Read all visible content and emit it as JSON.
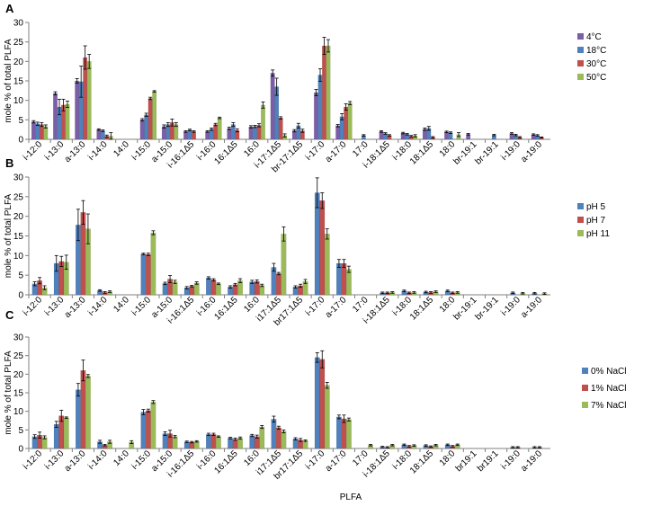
{
  "figure": {
    "xlabel": "PLFA"
  },
  "chart_data": [
    {
      "panel": "A",
      "type": "bar",
      "ylabel": "mole % of total PLFA",
      "ylim": [
        0,
        30
      ],
      "yticks": [
        0,
        5,
        10,
        15,
        20,
        25,
        30
      ],
      "legend_position": "right",
      "categories": [
        "i-12:0",
        "i-13:0",
        "a-13:0",
        "i-14:0",
        "14:0",
        "i-15:0",
        "a-15:0",
        "i-16:1Δ5",
        "i-16:0",
        "16:1Δ5",
        "16:0",
        "i-17:1Δ5",
        "br-17:1Δ5",
        "i-17:0",
        "a-17:0",
        "17:0",
        "i-18:1Δ5",
        "i-18:0",
        "18:1Δ5",
        "18:0",
        "br-19:1",
        "br-19:1",
        "i-19:0",
        "a-19:0"
      ],
      "series": [
        {
          "name": "4°C",
          "color": "#7b5ea7",
          "values": [
            4.5,
            11.8,
            15.0,
            2.5,
            0,
            5.0,
            3.3,
            2.0,
            2.0,
            2.8,
            3.2,
            17.0,
            2.2,
            12.0,
            3.5,
            0,
            2.0,
            1.6,
            2.6,
            1.9,
            1.3,
            0,
            1.5,
            1.2
          ],
          "errors": [
            0.3,
            0.4,
            0.6,
            0.2,
            0,
            0.3,
            0.4,
            0.2,
            0.2,
            0.3,
            0.3,
            0.8,
            0.3,
            0.8,
            0.3,
            0,
            0.2,
            0.2,
            0.3,
            0.2,
            0.2,
            0,
            0.2,
            0.2
          ]
        },
        {
          "name": "18°C",
          "color": "#4f81bd",
          "values": [
            4.0,
            8.3,
            14.8,
            2.2,
            0,
            6.3,
            3.8,
            2.4,
            2.6,
            3.8,
            3.3,
            13.5,
            3.5,
            16.5,
            5.8,
            1.0,
            1.5,
            1.3,
            2.8,
            1.7,
            0,
            1.1,
            1.1,
            1.0
          ],
          "errors": [
            0.4,
            2.0,
            4.0,
            0.2,
            0,
            0.4,
            0.5,
            0.2,
            0.3,
            0.5,
            0.3,
            2.2,
            0.6,
            1.6,
            0.8,
            0.2,
            0.2,
            0.2,
            0.5,
            0.2,
            0,
            0.2,
            0.2,
            0.2
          ]
        },
        {
          "name": "30°C",
          "color": "#c0504d",
          "values": [
            3.8,
            8.8,
            21.0,
            0.8,
            0,
            10.5,
            4.3,
            2.0,
            3.8,
            2.3,
            3.6,
            5.5,
            2.2,
            24.0,
            8.3,
            0,
            1.0,
            0.8,
            0.5,
            0,
            0,
            0,
            0.5,
            0.5
          ],
          "errors": [
            0.5,
            1.5,
            3.0,
            0.3,
            0,
            0.3,
            0.9,
            0.2,
            0.3,
            0.4,
            0.4,
            0.3,
            0.4,
            2.2,
            0.8,
            0,
            0.2,
            0.2,
            0.2,
            0,
            0,
            0,
            0.2,
            0.1
          ]
        },
        {
          "name": "50°C",
          "color": "#9bbb59",
          "values": [
            3.3,
            9.0,
            20.0,
            0.8,
            0,
            12.3,
            3.8,
            0,
            5.5,
            0,
            8.8,
            1.0,
            0,
            24.0,
            9.3,
            0,
            0,
            0.9,
            0,
            1.2,
            0,
            0,
            0,
            0
          ],
          "errors": [
            0.4,
            0.8,
            1.8,
            0.9,
            0,
            0.2,
            0.5,
            0,
            0.2,
            0,
            0.8,
            0.4,
            0,
            1.6,
            0.4,
            0,
            0,
            0.3,
            0,
            0.5,
            0,
            0,
            0,
            0
          ]
        }
      ]
    },
    {
      "panel": "B",
      "type": "bar",
      "ylabel": "mole % of total PLFA",
      "ylim": [
        0,
        30
      ],
      "yticks": [
        0,
        5,
        10,
        15,
        20,
        25,
        30
      ],
      "legend_position": "right",
      "categories": [
        "i-12:0",
        "i-13:0",
        "a-13:0",
        "i-14:0",
        "14:0",
        "i-15:0",
        "a-15:0",
        "i-16:1Δ5",
        "i-16:0",
        "16:1Δ5",
        "16:0",
        "i17:1Δ5",
        "br17:1Δ5",
        "i-17:0",
        "a-17:0",
        "17:0",
        "i-18:1Δ5",
        "i-18:0",
        "18:1Δ5",
        "18:0",
        "br-19:1",
        "br-19:1",
        "i-19:0",
        "a-19:0"
      ],
      "series": [
        {
          "name": "pH 5",
          "color": "#4f81bd",
          "values": [
            2.8,
            8.0,
            17.8,
            1.1,
            0,
            10.4,
            2.9,
            1.8,
            4.3,
            2.0,
            3.3,
            7.0,
            2.0,
            26.0,
            8.0,
            0,
            0.5,
            1.0,
            0.7,
            1.0,
            0,
            0,
            0.5,
            0.4
          ],
          "errors": [
            0.5,
            2.0,
            4.0,
            0.2,
            0,
            0.2,
            0.3,
            0.3,
            0.3,
            0.3,
            0.4,
            1.0,
            0.3,
            3.8,
            1.0,
            0,
            0.2,
            0.2,
            0.2,
            0.2,
            0,
            0,
            0.2,
            0.2
          ]
        },
        {
          "name": "pH 7",
          "color": "#c0504d",
          "values": [
            3.6,
            8.5,
            21.0,
            0.6,
            0,
            10.3,
            4.0,
            2.2,
            3.8,
            2.6,
            3.4,
            5.4,
            2.3,
            24.0,
            8.0,
            0,
            0.5,
            0.5,
            0.6,
            0.5,
            0,
            0,
            0,
            0
          ],
          "errors": [
            0.8,
            1.3,
            3.0,
            0.2,
            0,
            0.3,
            0.9,
            0.2,
            0.3,
            0.3,
            0.4,
            0.3,
            0.4,
            2.0,
            1.0,
            0,
            0.2,
            0.2,
            0.2,
            0.2,
            0,
            0,
            0,
            0
          ]
        },
        {
          "name": "pH 11",
          "color": "#9bbb59",
          "values": [
            1.8,
            8.3,
            16.8,
            0.8,
            0,
            15.8,
            3.3,
            3.0,
            2.8,
            3.6,
            2.4,
            15.5,
            3.4,
            15.5,
            6.5,
            0,
            0.6,
            0.6,
            0.8,
            0.6,
            0,
            0,
            0.4,
            0.3
          ],
          "errors": [
            0.5,
            1.8,
            3.8,
            0.2,
            0,
            0.5,
            0.4,
            0.3,
            0.2,
            0.5,
            0.3,
            1.8,
            0.5,
            1.3,
            0.8,
            0,
            0.2,
            0.2,
            0.2,
            0.2,
            0,
            0,
            0.2,
            0.2
          ]
        }
      ]
    },
    {
      "panel": "C",
      "type": "bar",
      "ylabel": "mole % of total PLFA",
      "ylim": [
        0,
        30
      ],
      "yticks": [
        0,
        5,
        10,
        15,
        20,
        25,
        30
      ],
      "legend_position": "right",
      "categories": [
        "i-12:0",
        "i-13:0",
        "a-13:0",
        "i-14:0",
        "14:0",
        "i-15:0",
        "a-15:0",
        "i-16:1Δ5",
        "i-16:0",
        "16:1Δ5",
        "16:0",
        "i17:1Δ5",
        "br17:1Δ5",
        "i-17:0",
        "a-17:0",
        "17:0",
        "i-18:1Δ5",
        "i-18:0",
        "18:1Δ5",
        "18:0",
        "br19:1",
        "br19:1",
        "i-19:0",
        "a-19:0"
      ],
      "series": [
        {
          "name": "0% NaCl",
          "color": "#4f81bd",
          "values": [
            3.2,
            6.5,
            15.8,
            1.8,
            0,
            9.8,
            4.0,
            1.8,
            3.8,
            2.8,
            3.5,
            7.9,
            2.6,
            24.5,
            8.5,
            0,
            0.4,
            1.0,
            0.8,
            1.0,
            0,
            0,
            0.3,
            0.3
          ],
          "errors": [
            0.5,
            0.8,
            1.7,
            0.4,
            0,
            0.7,
            0.5,
            0.2,
            0.3,
            0.2,
            0.3,
            0.8,
            0.3,
            1.3,
            0.5,
            0,
            0.2,
            0.2,
            0.2,
            0.2,
            0,
            0,
            0.2,
            0.2
          ]
        },
        {
          "name": "1% NaCl",
          "color": "#c0504d",
          "values": [
            3.6,
            8.8,
            21.0,
            0.9,
            0,
            10.2,
            4.0,
            1.7,
            3.8,
            2.5,
            3.2,
            5.6,
            2.3,
            24.0,
            8.0,
            0,
            0.3,
            0.6,
            0.5,
            0.6,
            0,
            0,
            0.3,
            0.3
          ],
          "errors": [
            0.8,
            1.5,
            2.8,
            0.2,
            0,
            0.4,
            0.9,
            0.2,
            0.3,
            0.3,
            0.4,
            0.4,
            0.4,
            2.3,
            1.0,
            0,
            0.2,
            0.2,
            0.2,
            0.2,
            0,
            0,
            0.2,
            0.2
          ]
        },
        {
          "name": "7% NaCl",
          "color": "#9bbb59",
          "values": [
            3.0,
            8.3,
            19.5,
            1.8,
            1.7,
            12.5,
            3.2,
            1.9,
            3.2,
            2.8,
            5.8,
            4.6,
            2.1,
            17.0,
            7.8,
            0.9,
            0.9,
            0.8,
            0.9,
            1.0,
            0,
            0,
            0,
            0
          ],
          "errors": [
            0.4,
            0.2,
            0.4,
            0.4,
            0.4,
            0.4,
            0.3,
            0.2,
            0.2,
            0.3,
            0.4,
            0.4,
            0.2,
            0.8,
            0.4,
            0.2,
            0.2,
            0.2,
            0.2,
            0.2,
            0,
            0,
            0,
            0
          ]
        }
      ]
    }
  ]
}
